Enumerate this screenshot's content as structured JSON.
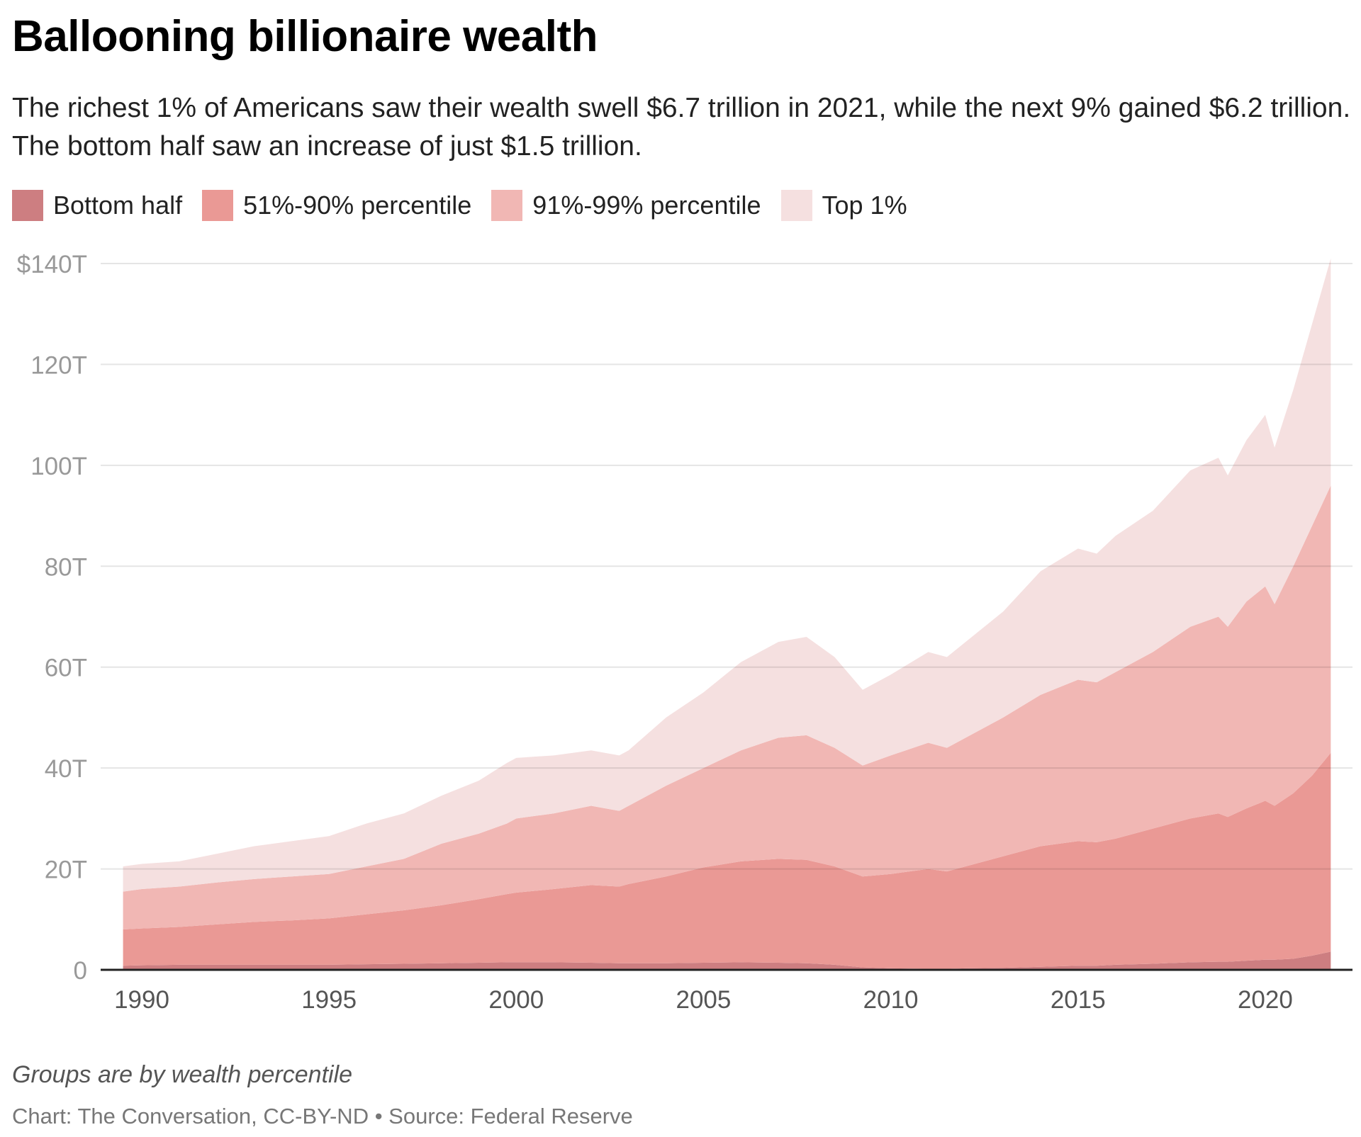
{
  "title": "Ballooning billionaire wealth",
  "subtitle": "The richest 1% of Americans saw their wealth swell $6.7 trillion in 2021, while the next 9% gained $6.2 trillion. The bottom half saw an increase of just $1.5 trillion.",
  "footnote": "Groups are by wealth percentile",
  "source": "Chart: The Conversation, CC-BY-ND • Source: Federal Reserve",
  "chart_data": {
    "type": "area",
    "stacked": true,
    "title": "Ballooning billionaire wealth",
    "xlabel": "",
    "ylabel": "",
    "xlim": [
      1989,
      2022.5
    ],
    "ylim": [
      0,
      140
    ],
    "y_ticks": [
      0,
      20,
      40,
      60,
      80,
      100,
      120,
      140
    ],
    "y_tick_labels": [
      "0",
      "20T",
      "40T",
      "60T",
      "80T",
      "100T",
      "120T",
      "$140T"
    ],
    "x_ticks": [
      1990,
      1995,
      2000,
      2005,
      2010,
      2015,
      2020
    ],
    "x_tick_labels": [
      "1990",
      "1995",
      "2000",
      "2005",
      "2010",
      "2015",
      "2020"
    ],
    "grid": "horizontal",
    "legend_position": "top-left",
    "unit": "trillion USD",
    "x": [
      1989.5,
      1990,
      1991,
      1992,
      1993,
      1994,
      1995,
      1996,
      1997,
      1998,
      1999,
      1999.75,
      2000,
      2001,
      2002,
      2002.75,
      2003,
      2004,
      2005,
      2006,
      2007,
      2007.75,
      2008.5,
      2009.25,
      2010,
      2011,
      2011.5,
      2012,
      2013,
      2014,
      2015,
      2015.5,
      2016,
      2017,
      2018,
      2018.75,
      2019,
      2019.5,
      2020,
      2020.25,
      2020.75,
      2021.25,
      2021.75
    ],
    "series": [
      {
        "name": "Bottom half",
        "color": "#cd7e81",
        "values": [
          0.8,
          0.9,
          1,
          1,
          1,
          1,
          1,
          1.1,
          1.2,
          1.3,
          1.4,
          1.5,
          1.5,
          1.5,
          1.4,
          1.3,
          1.3,
          1.3,
          1.4,
          1.5,
          1.4,
          1.3,
          1,
          0.5,
          0.3,
          0.2,
          0.2,
          0.3,
          0.4,
          0.6,
          0.8,
          0.8,
          1,
          1.2,
          1.5,
          1.6,
          1.6,
          1.8,
          2,
          2,
          2.2,
          2.8,
          3.6
        ]
      },
      {
        "name": "51%-90% percentile",
        "color": "#ea9995",
        "values": [
          7.2,
          7.3,
          7.5,
          8,
          8.5,
          8.8,
          9.2,
          9.9,
          10.6,
          11.5,
          12.6,
          13.5,
          13.8,
          14.5,
          15.4,
          15.2,
          15.7,
          17.2,
          18.9,
          20,
          20.6,
          20.5,
          19.5,
          18,
          18.7,
          19.8,
          19.3,
          20.2,
          22.1,
          23.9,
          24.7,
          24.5,
          25,
          26.8,
          28.5,
          29.4,
          28.7,
          30.2,
          31.5,
          30.5,
          32.8,
          35.7,
          39.4
        ]
      },
      {
        "name": "91%-99% percentile",
        "color": "#f1b7b4",
        "values": [
          7.5,
          7.8,
          8,
          8.3,
          8.5,
          8.7,
          8.8,
          9.5,
          10.2,
          12.2,
          13,
          14,
          14.7,
          15,
          15.7,
          15,
          15.5,
          18,
          19.7,
          22,
          24,
          24.7,
          23.5,
          22,
          23.5,
          25,
          24.5,
          25.5,
          27.5,
          30,
          32,
          31.7,
          33,
          35,
          38,
          39,
          37.7,
          41,
          42.5,
          40,
          45,
          49.5,
          53
        ]
      },
      {
        "name": "Top 1%",
        "color": "#f5e0e0",
        "values": [
          5,
          5,
          5,
          5.7,
          6.5,
          7,
          7.5,
          8.5,
          9,
          9.5,
          10.5,
          12,
          12,
          11.5,
          11,
          11,
          11,
          13.5,
          15,
          17.5,
          19,
          19.5,
          18,
          15,
          16,
          18,
          18,
          19,
          21,
          24.5,
          26,
          25.5,
          27,
          28,
          31,
          31.5,
          30,
          32,
          34,
          31,
          35,
          40,
          45
        ]
      }
    ]
  }
}
